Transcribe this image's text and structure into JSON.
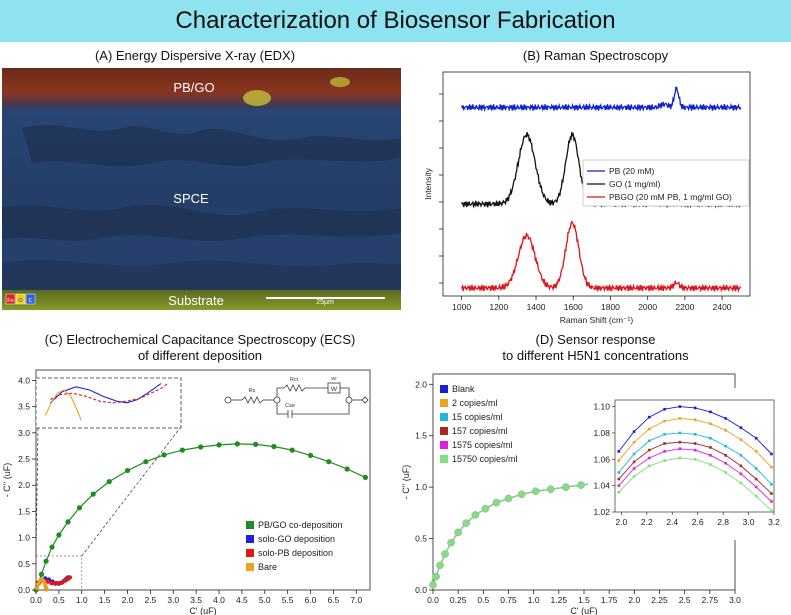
{
  "banner": {
    "title": "Characterization of Biosensor Fabrication"
  },
  "panelA": {
    "title": "(A) Energy Dispersive X-ray (EDX)",
    "labels": {
      "pbgo": "PB/GO",
      "spce": "SPCE",
      "substrate": "Substrate"
    },
    "scalebar": "25µm",
    "elements": [
      {
        "symbol": "Fe",
        "color": "#e02020"
      },
      {
        "symbol": "O",
        "color": "#e8d020"
      },
      {
        "symbol": "C",
        "color": "#3060e0"
      }
    ]
  },
  "chart_data": [
    {
      "type": "line",
      "id": "raman",
      "title": "(B) Raman Spectroscopy",
      "xlabel": "Raman Shift (cm⁻¹)",
      "ylabel": "Intensity",
      "xlim": [
        900,
        2550
      ],
      "xticks": [
        1000,
        1200,
        1400,
        1600,
        1800,
        2000,
        2200,
        2400
      ],
      "xtick_labels": [
        "1000",
        "1200",
        "1400",
        "1600",
        "1800",
        "2000",
        "2200",
        "2400"
      ],
      "y_units": "arbitrary (stacked, offset)",
      "legend_position": "center-right",
      "series": [
        {
          "name": "PB (20 mM)",
          "color": "#1020cc",
          "baseline": 8.6,
          "peaks": [
            [
              2090,
              0.15,
              20
            ],
            [
              2155,
              0.9,
              12
            ]
          ]
        },
        {
          "name": "GO (1 mg/ml)",
          "color": "#111111",
          "baseline": 4.0,
          "peaks": [
            [
              1350,
              3.3,
              45
            ],
            [
              1595,
              3.3,
              35
            ]
          ]
        },
        {
          "name": "PBGO (20 mM PB, 1 mg/ml GO)",
          "color": "#e01515",
          "baseline": 0.0,
          "peaks": [
            [
              1350,
              2.5,
              45
            ],
            [
              1595,
              3.1,
              35
            ],
            [
              2155,
              0.25,
              15
            ]
          ]
        }
      ]
    },
    {
      "type": "scatter",
      "id": "ecs",
      "title": "(C) Electrochemical Capacitance Spectroscopy (ECS)\nof different deposition",
      "xlabel": "C' (uF)",
      "ylabel": "- C'' (uF)",
      "xlim": [
        0,
        7.3
      ],
      "ylim": [
        0,
        4.2
      ],
      "xticks": [
        0,
        0.5,
        1,
        1.5,
        2,
        2.5,
        3,
        3.5,
        4,
        4.5,
        5,
        5.5,
        6,
        6.5,
        7
      ],
      "xtick_labels": [
        "0.0",
        "0.5",
        "1.0",
        "1.5",
        "2.0",
        "2.5",
        "3.0",
        "3.5",
        "4.0",
        "4.5",
        "5.0",
        "5.5",
        "6.0",
        "6.5",
        "7.0"
      ],
      "yticks": [
        0,
        0.5,
        1,
        1.5,
        2,
        2.5,
        3,
        3.5,
        4
      ],
      "ytick_labels": [
        "0.0",
        "0.5",
        "1.0",
        "1.5",
        "2.0",
        "2.5",
        "3.0",
        "3.5",
        "4.0"
      ],
      "legend_position": "lower-right",
      "inset": "zoomed view of 0–1 uF region with equivalent circuit",
      "circuit_labels": [
        "Rs",
        "Rct",
        "Wr",
        "Cse"
      ],
      "series": [
        {
          "name": "PB/GO co-deposition",
          "color": "#1e8c1e",
          "x": [
            0.0,
            0.05,
            0.12,
            0.22,
            0.35,
            0.5,
            0.7,
            0.95,
            1.25,
            1.6,
            2.0,
            2.4,
            2.8,
            3.2,
            3.6,
            4.0,
            4.4,
            4.8,
            5.2,
            5.6,
            6.0,
            6.4,
            6.8,
            7.2
          ],
          "y": [
            0.0,
            0.12,
            0.3,
            0.55,
            0.82,
            1.05,
            1.3,
            1.57,
            1.83,
            2.07,
            2.28,
            2.45,
            2.58,
            2.67,
            2.73,
            2.77,
            2.79,
            2.78,
            2.74,
            2.67,
            2.57,
            2.45,
            2.31,
            2.15
          ]
        },
        {
          "name": "solo-GO deposition",
          "color": "#1a22dd",
          "x": [
            0.05,
            0.12,
            0.2,
            0.28,
            0.36,
            0.44,
            0.5,
            0.56,
            0.62,
            0.66,
            0.7
          ],
          "y": [
            0.12,
            0.19,
            0.22,
            0.2,
            0.16,
            0.13,
            0.12,
            0.14,
            0.18,
            0.21,
            0.24
          ]
        },
        {
          "name": "solo-PB deposition",
          "color": "#e01818",
          "x": [
            0.05,
            0.1,
            0.18,
            0.26,
            0.34,
            0.42,
            0.5,
            0.58,
            0.64,
            0.7,
            0.74
          ],
          "y": [
            0.14,
            0.17,
            0.18,
            0.16,
            0.13,
            0.12,
            0.13,
            0.15,
            0.18,
            0.21,
            0.24
          ]
        },
        {
          "name": "Bare",
          "color": "#f0a020",
          "x": [
            0.02,
            0.05,
            0.09,
            0.13,
            0.17,
            0.2,
            0.22,
            0.23
          ],
          "y": [
            0.04,
            0.11,
            0.18,
            0.2,
            0.16,
            0.09,
            0.04,
            0.01
          ]
        }
      ]
    },
    {
      "type": "scatter",
      "id": "response",
      "title": "(D) Sensor response\nto different H5N1 concentrations",
      "xlabel": "C' (uF)",
      "ylabel": "- C'' (uF)",
      "xlim": [
        0,
        3.0
      ],
      "ylim": [
        0,
        2.1
      ],
      "xticks": [
        0,
        0.25,
        0.5,
        0.75,
        1,
        1.25,
        1.5,
        1.75,
        2,
        2.25,
        2.5,
        2.75,
        3
      ],
      "xtick_labels": [
        "0.0",
        "0.25",
        "0.5",
        "0.75",
        "1.0",
        "1.25",
        "1.5",
        "1.75",
        "2.0",
        "2.25",
        "2.5",
        "2.75",
        "3.0"
      ],
      "yticks": [
        0,
        0.5,
        1,
        1.5,
        2
      ],
      "ytick_labels": [
        "0.0",
        "0.5",
        "1.0",
        "1.5",
        "2.0"
      ],
      "legend_position": "top-left",
      "main_curve": {
        "x": [
          0.0,
          0.03,
          0.07,
          0.12,
          0.18,
          0.25,
          0.33,
          0.42,
          0.52,
          0.63,
          0.75,
          0.88,
          1.02,
          1.17,
          1.32,
          1.47,
          1.62,
          1.77
        ],
        "y": [
          0.05,
          0.13,
          0.24,
          0.35,
          0.46,
          0.56,
          0.65,
          0.73,
          0.79,
          0.85,
          0.89,
          0.93,
          0.96,
          0.98,
          1.0,
          1.02,
          1.04,
          1.06
        ]
      },
      "inset": {
        "xlim": [
          1.95,
          3.2
        ],
        "ylim": [
          1.02,
          1.105
        ],
        "xticks": [
          2.0,
          2.2,
          2.4,
          2.6,
          2.8,
          3.0,
          3.2
        ],
        "xtick_labels": [
          "2.0",
          "2.2",
          "2.4",
          "2.6",
          "2.8",
          "3.0",
          "3.2"
        ],
        "yticks": [
          1.02,
          1.04,
          1.06,
          1.08,
          1.1
        ],
        "ytick_labels": [
          "1.02",
          "1.04",
          "1.06",
          "1.08",
          "1.10"
        ],
        "x": [
          1.98,
          2.1,
          2.22,
          2.34,
          2.46,
          2.58,
          2.7,
          2.82,
          2.94,
          3.06,
          3.18
        ]
      },
      "series": [
        {
          "name": "Blank",
          "color": "#1a1ae0",
          "y": [
            1.066,
            1.081,
            1.092,
            1.098,
            1.1,
            1.099,
            1.096,
            1.091,
            1.084,
            1.076,
            1.064
          ]
        },
        {
          "name": "2 copies/ml",
          "color": "#f0a020",
          "y": [
            1.059,
            1.073,
            1.083,
            1.089,
            1.091,
            1.09,
            1.087,
            1.082,
            1.075,
            1.066,
            1.054
          ]
        },
        {
          "name": "15 copies/ml",
          "color": "#20b8e0",
          "y": [
            1.05,
            1.064,
            1.074,
            1.079,
            1.08,
            1.079,
            1.076,
            1.07,
            1.063,
            1.053,
            1.041
          ]
        },
        {
          "name": "157 copies/ml",
          "color": "#a82828",
          "y": [
            1.045,
            1.058,
            1.067,
            1.072,
            1.073,
            1.072,
            1.069,
            1.063,
            1.055,
            1.045,
            1.034
          ]
        },
        {
          "name": "1575 copies/ml",
          "color": "#e020e0",
          "y": [
            1.04,
            1.053,
            1.061,
            1.066,
            1.068,
            1.067,
            1.063,
            1.057,
            1.049,
            1.039,
            1.028
          ]
        },
        {
          "name": "15750 copies/ml",
          "color": "#80e080",
          "y": [
            1.035,
            1.047,
            1.055,
            1.059,
            1.061,
            1.06,
            1.056,
            1.05,
            1.042,
            1.032,
            1.021
          ]
        }
      ]
    }
  ]
}
